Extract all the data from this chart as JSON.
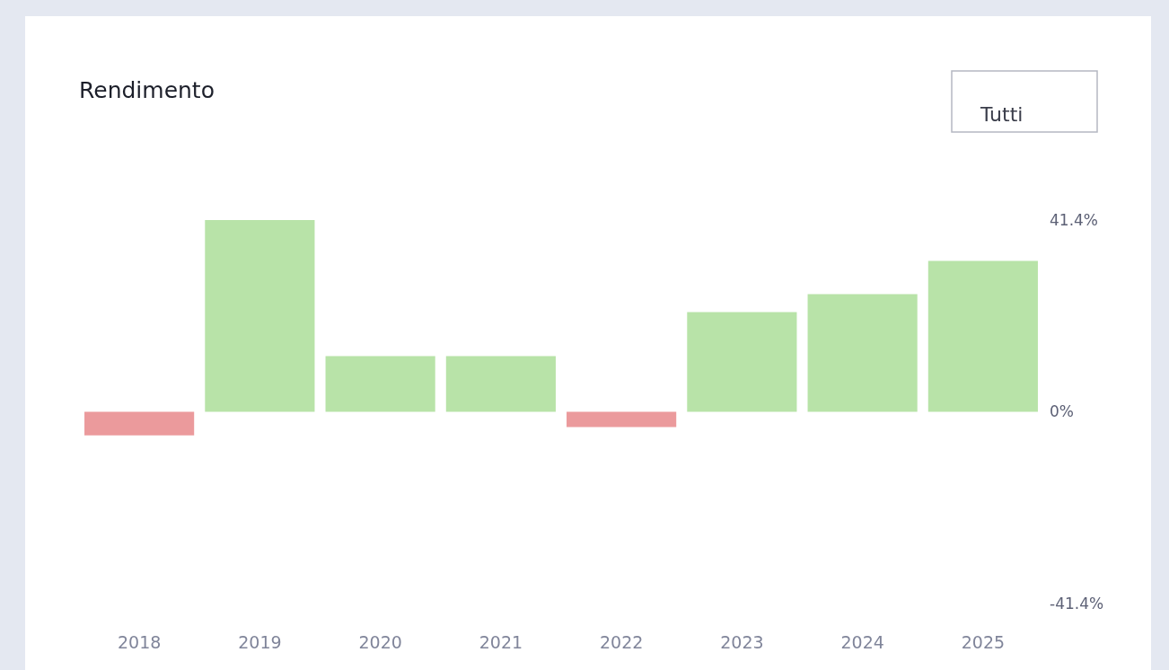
{
  "chart_data": {
    "type": "bar",
    "title": "Rendimento",
    "annotations": [
      "Tutti"
    ],
    "categories": [
      "2018",
      "2019",
      "2020",
      "2021",
      "2022",
      "2023",
      "2024",
      "2025"
    ],
    "values": [
      -5.1,
      41.4,
      12.0,
      12.0,
      -3.3,
      21.5,
      25.4,
      32.6
    ],
    "colors": [
      "#eb9a9c",
      "#b8e3a8",
      "#b8e3a8",
      "#b8e3a8",
      "#eb9a9c",
      "#b8e3a8",
      "#b8e3a8",
      "#b8e3a8"
    ],
    "ylim": [
      -41.4,
      41.4
    ],
    "yticks": [
      {
        "value": 41.4,
        "label": "41.4%"
      },
      {
        "value": 0,
        "label": "0%"
      },
      {
        "value": -41.4,
        "label": "-41.4%"
      }
    ],
    "legend": false
  }
}
